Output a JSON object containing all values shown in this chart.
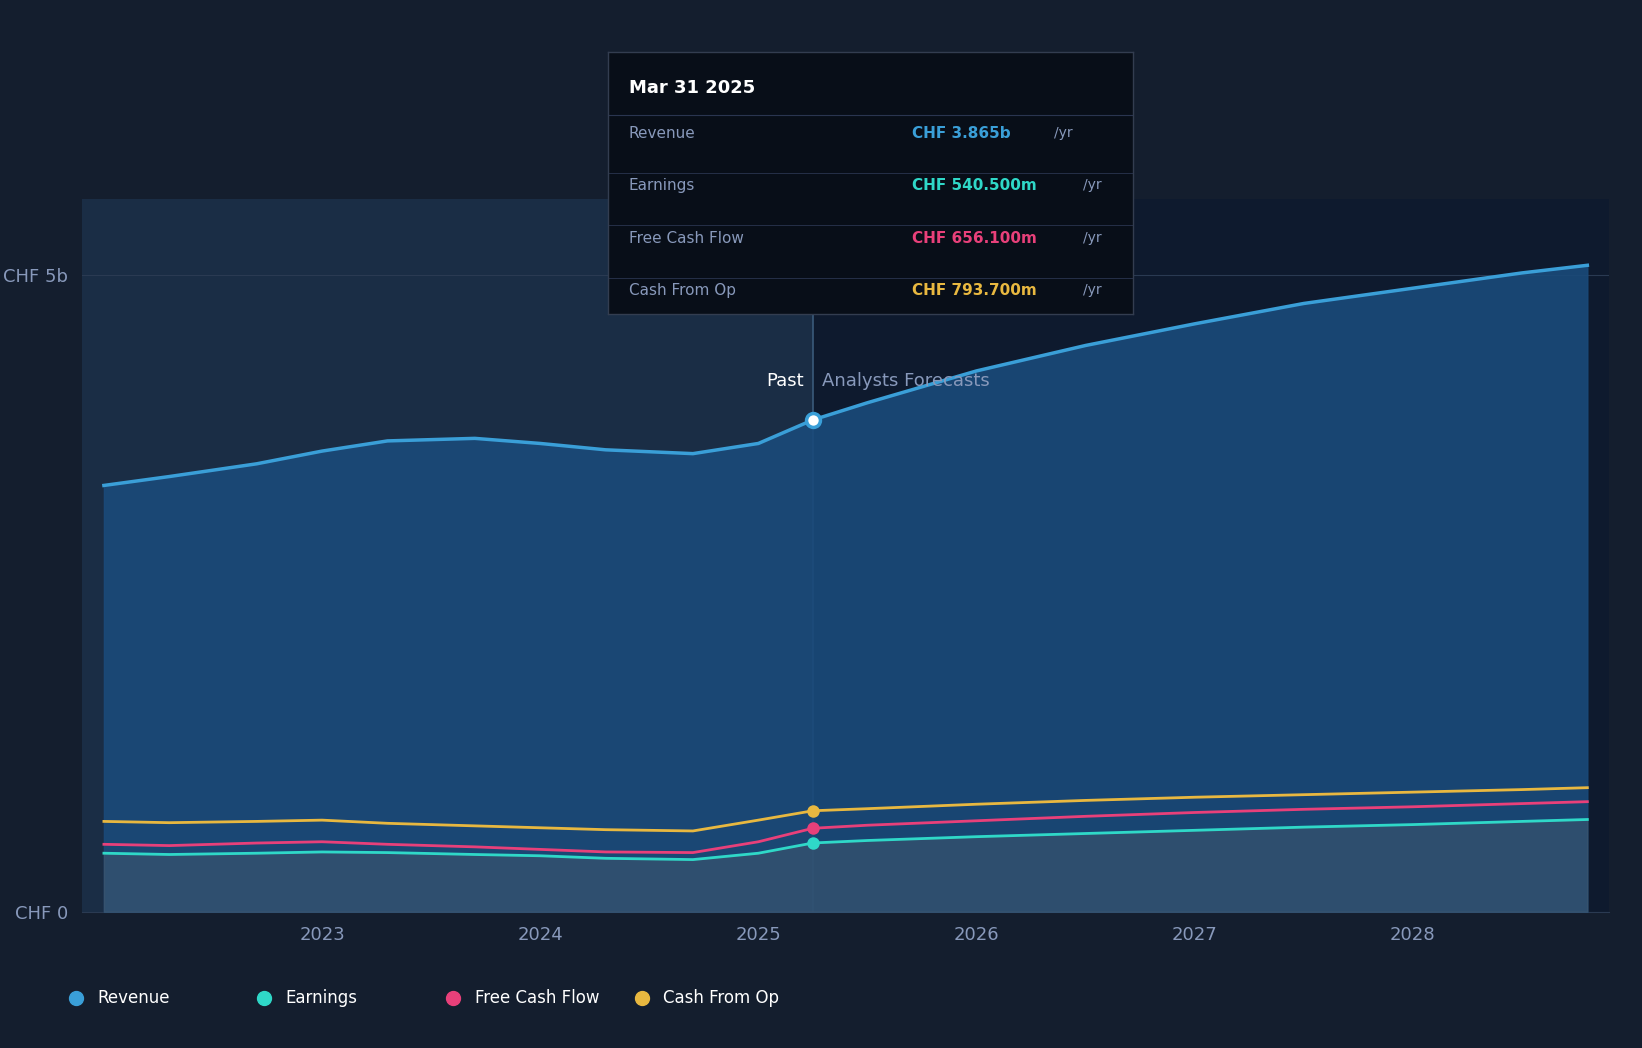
{
  "bg_color": "#141e2e",
  "plot_bg_left": "#1a2d45",
  "plot_bg_right": "#0e1a2e",
  "grid_color": "#2a3a52",
  "divider_x": 2025.25,
  "xlim": [
    2021.9,
    2028.9
  ],
  "ylim": [
    0,
    5600000000.0
  ],
  "yticks": [
    0,
    5000000000.0
  ],
  "ytick_labels": [
    "CHF 0",
    "CHF 5b"
  ],
  "xticks": [
    2023,
    2024,
    2025,
    2026,
    2027,
    2028
  ],
  "revenue_color": "#3a9fd8",
  "revenue_fill": "#1a4a7a",
  "earnings_color": "#2fd8c8",
  "fcf_color": "#e8407a",
  "cashfromop_color": "#e8b840",
  "gray_fill_color": "#4a5a6a",
  "tooltip_bg": "#080e18",
  "tooltip_border": "#2a3a52",
  "past_label": "Past",
  "forecast_label": "Analysts Forecasts",
  "revenue_data_x": [
    2022.0,
    2022.3,
    2022.7,
    2023.0,
    2023.3,
    2023.7,
    2024.0,
    2024.3,
    2024.7,
    2025.0,
    2025.25,
    2025.5,
    2026.0,
    2026.5,
    2027.0,
    2027.5,
    2028.0,
    2028.5,
    2028.8
  ],
  "revenue_data_y": [
    3350000000.0,
    3420000000.0,
    3520000000.0,
    3620000000.0,
    3700000000.0,
    3720000000.0,
    3680000000.0,
    3630000000.0,
    3600000000.0,
    3680000000.0,
    3865000000.0,
    4000000000.0,
    4250000000.0,
    4450000000.0,
    4620000000.0,
    4780000000.0,
    4900000000.0,
    5020000000.0,
    5080000000.0
  ],
  "earnings_data_x": [
    2022.0,
    2022.3,
    2022.7,
    2023.0,
    2023.3,
    2023.7,
    2024.0,
    2024.3,
    2024.7,
    2025.0,
    2025.25,
    2025.5,
    2026.0,
    2026.5,
    2027.0,
    2027.5,
    2028.0,
    2028.5,
    2028.8
  ],
  "earnings_data_y": [
    460000000.0,
    450000000.0,
    460000000.0,
    470000000.0,
    465000000.0,
    450000000.0,
    440000000.0,
    420000000.0,
    410000000.0,
    460000000.0,
    540500000.0,
    560000000.0,
    590000000.0,
    615000000.0,
    640000000.0,
    665000000.0,
    685000000.0,
    710000000.0,
    725000000.0
  ],
  "fcf_data_x": [
    2022.0,
    2022.3,
    2022.7,
    2023.0,
    2023.3,
    2023.7,
    2024.0,
    2024.3,
    2024.7,
    2025.0,
    2025.25,
    2025.5,
    2026.0,
    2026.5,
    2027.0,
    2027.5,
    2028.0,
    2028.5,
    2028.8
  ],
  "fcf_data_y": [
    530000000.0,
    520000000.0,
    540000000.0,
    550000000.0,
    530000000.0,
    510000000.0,
    490000000.0,
    470000000.0,
    465000000.0,
    550000000.0,
    656100000.0,
    680000000.0,
    715000000.0,
    750000000.0,
    780000000.0,
    805000000.0,
    825000000.0,
    850000000.0,
    865000000.0
  ],
  "cashop_data_x": [
    2022.0,
    2022.3,
    2022.7,
    2023.0,
    2023.3,
    2023.7,
    2024.0,
    2024.3,
    2024.7,
    2025.0,
    2025.25,
    2025.5,
    2026.0,
    2026.5,
    2027.0,
    2027.5,
    2028.0,
    2028.5,
    2028.8
  ],
  "cashop_data_y": [
    710000000.0,
    700000000.0,
    710000000.0,
    720000000.0,
    695000000.0,
    675000000.0,
    660000000.0,
    645000000.0,
    635000000.0,
    720000000.0,
    793700000.0,
    810000000.0,
    845000000.0,
    875000000.0,
    900000000.0,
    920000000.0,
    940000000.0,
    960000000.0,
    975000000.0
  ],
  "legend_items": [
    "Revenue",
    "Earnings",
    "Free Cash Flow",
    "Cash From Op"
  ],
  "legend_colors": [
    "#3a9fd8",
    "#2fd8c8",
    "#e8407a",
    "#e8b840"
  ],
  "tooltip_title": "Mar 31 2025",
  "tooltip_rows": [
    [
      "Revenue",
      "CHF 3.865b",
      "#3a9fd8",
      "/yr"
    ],
    [
      "Earnings",
      "CHF 540.500m",
      "#2fd8c8",
      "/yr"
    ],
    [
      "Free Cash Flow",
      "CHF 656.100m",
      "#e8407a",
      "/yr"
    ],
    [
      "Cash From Op",
      "CHF 793.700m",
      "#e8b840",
      "/yr"
    ]
  ]
}
